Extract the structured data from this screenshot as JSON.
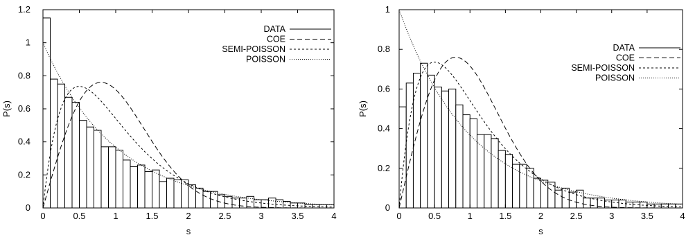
{
  "chart_data": [
    {
      "type": "bar",
      "xlabel": "s",
      "ylabel": "P(s)",
      "xlim": [
        0,
        4
      ],
      "ylim": [
        0,
        1.2
      ],
      "x_ticks": [
        "0",
        "0.5",
        "1",
        "1.5",
        "2",
        "2.5",
        "3",
        "3.5",
        "4"
      ],
      "y_ticks": [
        "0",
        "0.2",
        "0.4",
        "0.6",
        "0.8",
        "1",
        "1.2"
      ],
      "legend_position": "top-right",
      "bin_width": 0.1,
      "series": [
        {
          "name": "DATA",
          "style": "solid",
          "kind": "histogram",
          "bin_starts": [
            0,
            0.1,
            0.2,
            0.3,
            0.4,
            0.5,
            0.6,
            0.7,
            0.8,
            0.9,
            1,
            1.1,
            1.2,
            1.3,
            1.4,
            1.5,
            1.6,
            1.7,
            1.8,
            1.9,
            2,
            2.1,
            2.2,
            2.3,
            2.4,
            2.5,
            2.6,
            2.7,
            2.8,
            2.9,
            3,
            3.1,
            3.2,
            3.3,
            3.4,
            3.5,
            3.6,
            3.7,
            3.8,
            3.9
          ],
          "values": [
            1.15,
            0.78,
            0.75,
            0.67,
            0.64,
            0.53,
            0.49,
            0.47,
            0.37,
            0.37,
            0.35,
            0.29,
            0.25,
            0.26,
            0.22,
            0.23,
            0.16,
            0.18,
            0.17,
            0.17,
            0.14,
            0.12,
            0.1,
            0.1,
            0.08,
            0.07,
            0.06,
            0.06,
            0.07,
            0.05,
            0.05,
            0.06,
            0.05,
            0.04,
            0.03,
            0.03,
            0.02,
            0.02,
            0.02,
            0.02
          ]
        },
        {
          "name": "COE",
          "style": "dashed",
          "kind": "curve",
          "formula": "(pi/2)*s*exp(-pi*s^2/4)"
        },
        {
          "name": "SEMI-POISSON",
          "style": "short-dashed",
          "kind": "curve",
          "formula": "4*s*exp(-2*s)"
        },
        {
          "name": "POISSON",
          "style": "dotted",
          "kind": "curve",
          "formula": "exp(-s)"
        }
      ]
    },
    {
      "type": "bar",
      "xlabel": "s",
      "ylabel": "P(s)",
      "xlim": [
        0,
        4
      ],
      "ylim": [
        0,
        1
      ],
      "x_ticks": [
        "0",
        "0.5",
        "1",
        "1.5",
        "2",
        "2.5",
        "3",
        "3.5",
        "4"
      ],
      "y_ticks": [
        "0",
        "0.2",
        "0.4",
        "0.6",
        "0.8",
        "1"
      ],
      "legend_position": "top-right",
      "bin_width": 0.1,
      "series": [
        {
          "name": "DATA",
          "style": "solid",
          "kind": "histogram",
          "bin_starts": [
            0,
            0.1,
            0.2,
            0.3,
            0.4,
            0.5,
            0.6,
            0.7,
            0.8,
            0.9,
            1,
            1.1,
            1.2,
            1.3,
            1.4,
            1.5,
            1.6,
            1.7,
            1.8,
            1.9,
            2,
            2.1,
            2.2,
            2.3,
            2.4,
            2.5,
            2.6,
            2.7,
            2.8,
            2.9,
            3,
            3.1,
            3.2,
            3.3,
            3.4,
            3.5,
            3.6,
            3.7,
            3.8,
            3.9
          ],
          "values": [
            0.51,
            0.63,
            0.68,
            0.73,
            0.67,
            0.61,
            0.59,
            0.6,
            0.52,
            0.47,
            0.45,
            0.37,
            0.37,
            0.35,
            0.29,
            0.27,
            0.22,
            0.22,
            0.2,
            0.15,
            0.14,
            0.13,
            0.09,
            0.1,
            0.08,
            0.09,
            0.05,
            0.05,
            0.05,
            0.04,
            0.04,
            0.04,
            0.03,
            0.03,
            0.03,
            0.02,
            0.02,
            0.02,
            0.02,
            0.02
          ]
        },
        {
          "name": "COE",
          "style": "dashed",
          "kind": "curve",
          "formula": "(pi/2)*s*exp(-pi*s^2/4)"
        },
        {
          "name": "SEMI-POISSON",
          "style": "short-dashed",
          "kind": "curve",
          "formula": "4*s*exp(-2*s)"
        },
        {
          "name": "POISSON",
          "style": "dotted",
          "kind": "curve",
          "formula": "exp(-s)"
        }
      ]
    }
  ]
}
